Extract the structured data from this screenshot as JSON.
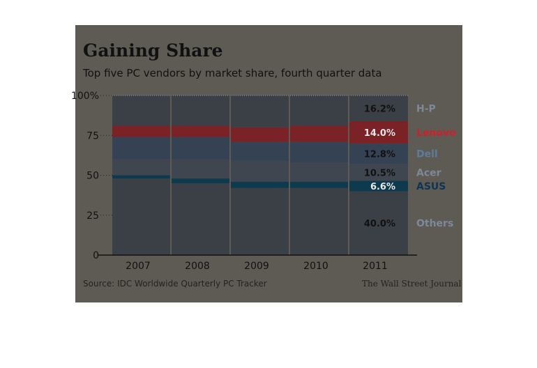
{
  "title": "Gaining Share",
  "subtitle": "Top five PC vendors by market share, fourth quarter data",
  "source": "Source: IDC Worldwide Quarterly PC Tracker",
  "credit": "The Wall Street Journal",
  "colors": {
    "panel": "#5e5b55",
    "bar": "#3b3f46",
    "lenovo": "#7a2226",
    "dell": "#354254",
    "acer": "#3f4650",
    "asus": "#0e3a4e",
    "lenovo_label": "#d01f2a",
    "dell_label": "#5b7c9c",
    "asus_label": "#0d3553",
    "muted_label": "#7d8898"
  },
  "chart_data": {
    "type": "bar",
    "stacked": true,
    "categories": [
      "2007",
      "2008",
      "2009",
      "2010",
      "2011"
    ],
    "ylim": [
      0,
      100
    ],
    "yticks": [
      "0",
      "25",
      "50",
      "75",
      "100%"
    ],
    "series": [
      {
        "name": "Others",
        "values": [
          48,
          45,
          42,
          42,
          40.0
        ]
      },
      {
        "name": "ASUS",
        "values": [
          2,
          3,
          4,
          4,
          6.6
        ]
      },
      {
        "name": "Acer",
        "values": [
          10,
          12,
          13,
          12,
          10.5
        ]
      },
      {
        "name": "Dell",
        "values": [
          14,
          14,
          12,
          13,
          12.8
        ]
      },
      {
        "name": "Lenovo",
        "values": [
          7,
          7,
          9,
          10,
          14.0
        ]
      },
      {
        "name": "H-P",
        "values": [
          19,
          19,
          20,
          19,
          16.2
        ]
      }
    ],
    "value_labels_2011": [
      "40.0%",
      "6.6%",
      "10.5%",
      "12.8%",
      "14.0%",
      "16.2%"
    ]
  }
}
